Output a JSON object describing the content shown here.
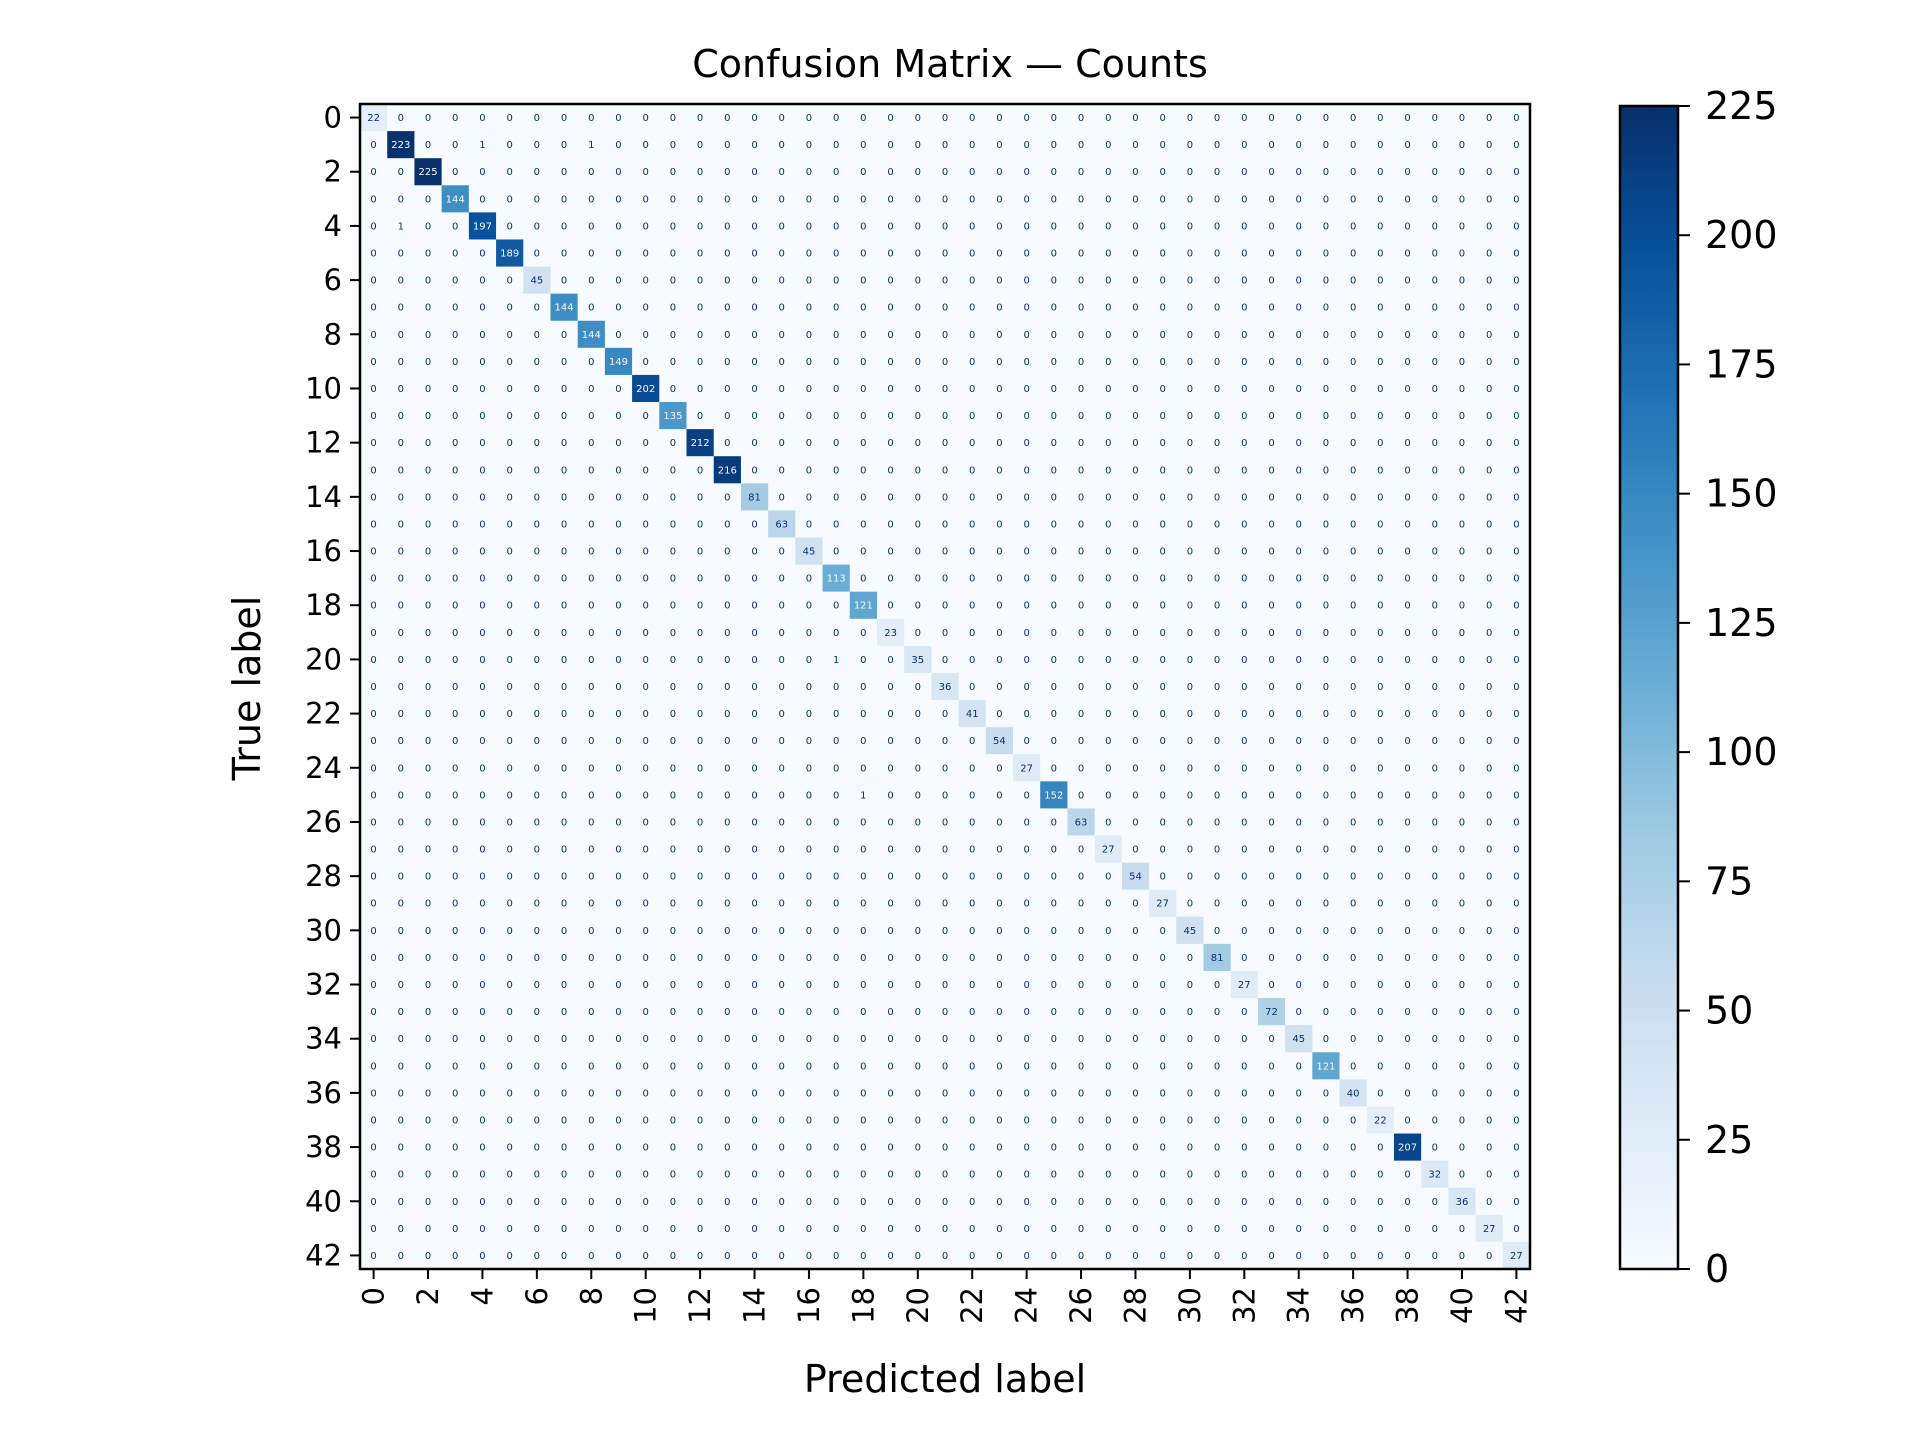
{
  "chart_data": {
    "type": "heatmap",
    "title": "Confusion Matrix — Counts",
    "xlabel": "Predicted label",
    "ylabel": "True label",
    "n_classes": 43,
    "labels": [
      0,
      1,
      2,
      3,
      4,
      5,
      6,
      7,
      8,
      9,
      10,
      11,
      12,
      13,
      14,
      15,
      16,
      17,
      18,
      19,
      20,
      21,
      22,
      23,
      24,
      25,
      26,
      27,
      28,
      29,
      30,
      31,
      32,
      33,
      34,
      35,
      36,
      37,
      38,
      39,
      40,
      41,
      42
    ],
    "tick_labels": [
      "0",
      "2",
      "4",
      "6",
      "8",
      "10",
      "12",
      "14",
      "16",
      "18",
      "20",
      "22",
      "24",
      "26",
      "28",
      "30",
      "32",
      "34",
      "36",
      "38",
      "40",
      "42"
    ],
    "diagonal": [
      22,
      223,
      225,
      144,
      197,
      189,
      45,
      144,
      144,
      149,
      202,
      135,
      212,
      216,
      81,
      63,
      45,
      113,
      121,
      23,
      35,
      36,
      41,
      54,
      27,
      152,
      63,
      27,
      54,
      27,
      45,
      81,
      27,
      72,
      45,
      121,
      40,
      22,
      207,
      32,
      36,
      27,
      27
    ],
    "off_diagonal": [
      {
        "true": 1,
        "pred": 4,
        "value": 1
      },
      {
        "true": 1,
        "pred": 8,
        "value": 1
      },
      {
        "true": 4,
        "pred": 1,
        "value": 1
      },
      {
        "true": 20,
        "pred": 17,
        "value": 1
      },
      {
        "true": 25,
        "pred": 18,
        "value": 1
      }
    ],
    "colormap": "Blues",
    "colorbar": {
      "min": 0,
      "max": 225,
      "ticks": [
        "0",
        "25",
        "50",
        "75",
        "100",
        "125",
        "150",
        "175",
        "200",
        "225"
      ]
    }
  }
}
